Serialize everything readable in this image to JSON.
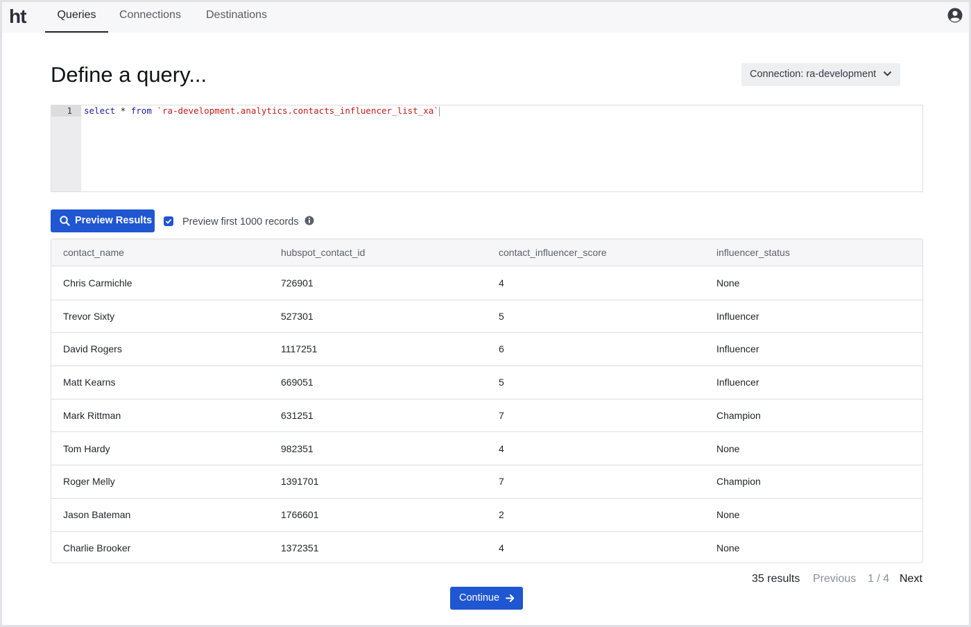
{
  "app": {
    "logo": "ht"
  },
  "nav": {
    "tabs": [
      {
        "label": "Queries",
        "active": true
      },
      {
        "label": "Connections",
        "active": false
      },
      {
        "label": "Destinations",
        "active": false
      }
    ],
    "account_icon": "account-circle-icon"
  },
  "page": {
    "title": "Define a query...",
    "connection_label": "Connection: ra-development"
  },
  "editor": {
    "line_number": "1",
    "kw_select": "select",
    "star": "*",
    "kw_from": "from",
    "table_ref": "`ra-development.analytics.contacts_influencer_list_xa`"
  },
  "preview": {
    "button_label": "Preview Results",
    "checkbox_checked": true,
    "checkbox_label": "Preview first 1000 records"
  },
  "table": {
    "columns": [
      "contact_name",
      "hubspot_contact_id",
      "contact_influencer_score",
      "influencer_status"
    ],
    "rows": [
      [
        "Chris Carmichle",
        "726901",
        "4",
        "None"
      ],
      [
        "Trevor Sixty",
        "527301",
        "5",
        "Influencer"
      ],
      [
        "David Rogers",
        "1117251",
        "6",
        "Influencer"
      ],
      [
        "Matt Kearns",
        "669051",
        "5",
        "Influencer"
      ],
      [
        "Mark Rittman",
        "631251",
        "7",
        "Champion"
      ],
      [
        "Tom Hardy",
        "982351",
        "4",
        "None"
      ],
      [
        "Roger Melly",
        "1391701",
        "7",
        "Champion"
      ],
      [
        "Jason Bateman",
        "1766601",
        "2",
        "None"
      ],
      [
        "Charlie Brooker",
        "1372351",
        "4",
        "None"
      ]
    ]
  },
  "pagination": {
    "results": "35 results",
    "previous": "Previous",
    "page": "1 / 4",
    "next": "Next"
  },
  "footer": {
    "continue_label": "Continue"
  },
  "colors": {
    "primary": "#1f56d1"
  }
}
